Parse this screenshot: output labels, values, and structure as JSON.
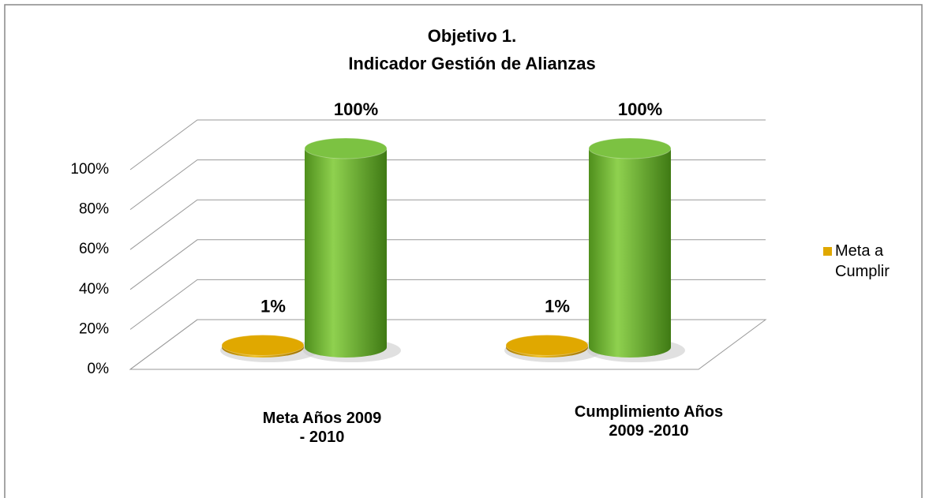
{
  "chart_data": {
    "type": "bar3d",
    "title": "Objetivo 1.",
    "subtitle": "Indicador Gestión de Alianzas",
    "categories": [
      "Meta Años  2009 - 2010",
      "Cumplimiento Años  2009 -2010"
    ],
    "series": [
      {
        "name": "Meta a Cumplir",
        "color": "#e0a800",
        "values": [
          1,
          1
        ],
        "value_labels": [
          "1%",
          "1%"
        ]
      },
      {
        "color": "#7cc242",
        "values": [
          100,
          100
        ],
        "value_labels": [
          "100%",
          "100%"
        ]
      }
    ],
    "ylim": [
      0,
      100
    ],
    "yticks": [
      {
        "value": 0,
        "label": "0%"
      },
      {
        "value": 20,
        "label": "20%"
      },
      {
        "value": 40,
        "label": "40%"
      },
      {
        "value": 60,
        "label": "60%"
      },
      {
        "value": 80,
        "label": "80%"
      },
      {
        "value": 100,
        "label": "100%"
      }
    ],
    "grid": true,
    "legend": "right"
  }
}
